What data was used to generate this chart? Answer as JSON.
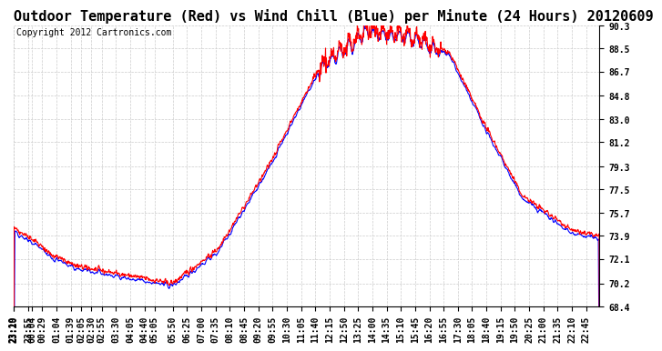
{
  "title": "Outdoor Temperature (Red) vs Wind Chill (Blue) per Minute (24 Hours) 20120609",
  "copyright": "Copyright 2012 Cartronics.com",
  "ylabel": "",
  "xlabel": "",
  "ylim": [
    68.4,
    90.3
  ],
  "yticks": [
    90.3,
    88.5,
    86.7,
    84.8,
    83.0,
    81.2,
    79.3,
    77.5,
    75.7,
    73.9,
    72.1,
    70.2,
    68.4
  ],
  "bg_color": "#ffffff",
  "grid_color": "#cccccc",
  "line_color_temp": "#ff0000",
  "line_color_wind": "#0000ff",
  "title_fontsize": 11,
  "copyright_fontsize": 7,
  "tick_fontsize": 7,
  "x_tick_interval": 5,
  "total_minutes": 1440
}
